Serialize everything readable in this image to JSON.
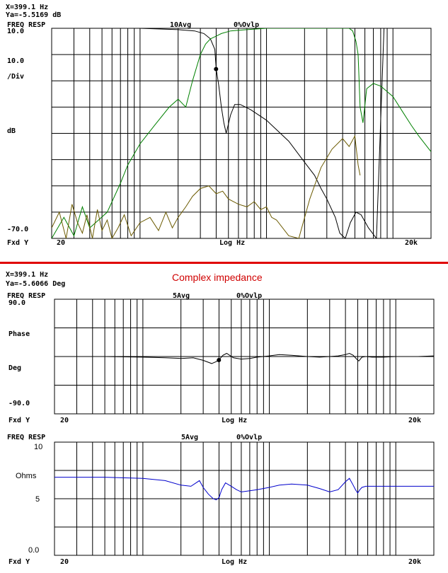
{
  "title": "Complex impedance",
  "divider_color": "#e00000",
  "charts": [
    {
      "readout_x": "X=399.1 Hz",
      "readout_y": "Ya=-5.5169 dB",
      "header_left": "FREQ RESP",
      "header_avg": "10Avg",
      "header_ovlp": "0%Ovlp",
      "y_top_label": "10.0",
      "y_scale_label": "10.0",
      "y_div_label": "/Div",
      "y_unit_label": "dB",
      "y_bottom_label": "-70.0",
      "x_mode_label": "Fxd Y",
      "x_left_label": "20",
      "x_center_label": "Log Hz",
      "x_right_label": "20k"
    },
    {
      "readout_x": "X=399.1 Hz",
      "readout_y": "Ya=-5.6066 Deg",
      "header_left": "FREQ RESP",
      "header_avg": "5Avg",
      "header_ovlp": "0%Ovlp",
      "y_top_label": "90.0",
      "y_mid_label": "Phase",
      "y_unit_label": "Deg",
      "y_bottom_label": "-90.0",
      "x_mode_label": "Fxd Y",
      "x_left_label": "20",
      "x_center_label": "Log Hz",
      "x_right_label": "20k"
    },
    {
      "header_left": "FREQ RESP",
      "header_avg": "5Avg",
      "header_ovlp": "0%Ovlp",
      "y_top_label": "10",
      "y_unit_label": "Ohms",
      "y_mid_label": "5",
      "y_bottom_label": "0.0",
      "x_mode_label": "Fxd Y",
      "x_left_label": "20",
      "x_center_label": "Log Hz",
      "x_right_label": "20k"
    }
  ],
  "chart_data": [
    {
      "type": "line",
      "x_scale": "log",
      "xlim": [
        20,
        20000
      ],
      "ylim": [
        -70,
        10
      ],
      "xlabel": "Log Hz",
      "ylabel": "dB",
      "grid": true,
      "series": [
        {
          "color": "#000000",
          "x": [
            20,
            50,
            100,
            200,
            270,
            320,
            360,
            390,
            400,
            420,
            440,
            460,
            480,
            520,
            560,
            620,
            750,
            1000,
            1500,
            2000,
            2400,
            2700,
            3000,
            3500,
            3800,
            4200,
            4600,
            5100,
            5600,
            6400,
            7400,
            8500,
            10000,
            12000,
            15000,
            20000
          ],
          "y": [
            10,
            10,
            10,
            9.5,
            9,
            8,
            6,
            2,
            -5.5,
            -12,
            -20,
            -26,
            -30,
            -23,
            -19,
            -19,
            -21,
            -25,
            -33,
            -41,
            -46,
            -51,
            -55,
            -62,
            -68,
            -70,
            -64,
            -60,
            -61,
            -66,
            -70,
            10,
            10,
            10,
            10,
            10
          ]
        },
        {
          "color": "#008000",
          "x": [
            20,
            25,
            30,
            35,
            40,
            47,
            55,
            70,
            80,
            100,
            130,
            170,
            200,
            230,
            260,
            300,
            330,
            360,
            400,
            440,
            520,
            700,
            1000,
            1500,
            2000,
            2500,
            3000,
            4000,
            4500,
            4800,
            5100,
            5300,
            5500,
            5800,
            6200,
            7000,
            8000,
            10000,
            12000,
            14000,
            16000,
            20000
          ],
          "y": [
            -70,
            -62,
            -69,
            -58,
            -66,
            -63,
            -60,
            -49,
            -42,
            -34,
            -27,
            -20,
            -17,
            -20,
            -10,
            0,
            4,
            6,
            7,
            8,
            9,
            9.5,
            10,
            10,
            10,
            10,
            10,
            10,
            10,
            9,
            5,
            0,
            -20,
            -26,
            -13,
            -11,
            -12,
            -16,
            -22,
            -27,
            -31,
            -37
          ]
        },
        {
          "color": "#6b5a00",
          "x": [
            20,
            23,
            26,
            29,
            32,
            35,
            38,
            42,
            46,
            50,
            55,
            60,
            67,
            75,
            85,
            100,
            120,
            140,
            160,
            180,
            200,
            230,
            260,
            300,
            350,
            400,
            450,
            500,
            600,
            700,
            800,
            900,
            1000,
            1100,
            1200,
            1500,
            1800,
            2200,
            2700,
            3300,
            4000,
            4500,
            5000,
            5300,
            5500
          ],
          "y": [
            -66,
            -60,
            -70,
            -57,
            -64,
            -68,
            -61,
            -70,
            -59,
            -67,
            -63,
            -70,
            -66,
            -61,
            -69,
            -64,
            -62,
            -67,
            -60,
            -66,
            -62,
            -58,
            -54,
            -51,
            -50,
            -53,
            -52,
            -55,
            -57,
            -58,
            -56,
            -59,
            -58,
            -62,
            -63,
            -69,
            -70,
            -55,
            -43,
            -36,
            -32,
            -35,
            -31,
            -42,
            -46
          ]
        }
      ],
      "cursor": {
        "x": 399.1,
        "y": -5.5169
      }
    },
    {
      "type": "line",
      "x_scale": "log",
      "xlim": [
        20,
        20000
      ],
      "ylim": [
        -90,
        90
      ],
      "xlabel": "Log Hz",
      "ylabel": "Phase Deg",
      "grid": true,
      "series": [
        {
          "color": "#000000",
          "x": [
            20,
            50,
            100,
            150,
            200,
            250,
            300,
            350,
            380,
            400,
            430,
            460,
            520,
            600,
            700,
            800,
            1000,
            1200,
            1500,
            2000,
            2500,
            3000,
            3500,
            4000,
            4300,
            4600,
            4900,
            5100,
            5400,
            5800,
            6500,
            8000,
            10000,
            15000,
            20000
          ],
          "y": [
            0,
            0,
            -1,
            -2,
            -3,
            -2,
            -6,
            -11,
            -8,
            -5,
            2,
            5,
            -2,
            -4,
            -3,
            -1,
            1,
            3,
            2,
            0,
            -1,
            0,
            1,
            3,
            5,
            2,
            -4,
            -7,
            -1,
            0,
            -1,
            -1,
            0,
            0,
            1
          ]
        }
      ],
      "cursor": {
        "x": 399.1,
        "y": -5.6066
      }
    },
    {
      "type": "line",
      "x_scale": "log",
      "xlim": [
        20,
        20000
      ],
      "ylim": [
        0,
        10
      ],
      "xlabel": "Log Hz",
      "ylabel": "Ohms",
      "grid": true,
      "series": [
        {
          "color": "#0000cc",
          "x": [
            20,
            50,
            100,
            150,
            200,
            240,
            280,
            300,
            330,
            360,
            380,
            400,
            420,
            450,
            500,
            550,
            600,
            700,
            800,
            1000,
            1200,
            1500,
            2000,
            2500,
            3000,
            3500,
            4000,
            4300,
            4600,
            4800,
            5000,
            5200,
            5400,
            5800,
            6500,
            8000,
            10000,
            15000,
            20000
          ],
          "y": [
            6.9,
            6.9,
            6.8,
            6.6,
            6.2,
            6.1,
            6.6,
            6.0,
            5.4,
            5.0,
            4.9,
            5.1,
            5.8,
            6.4,
            6.1,
            5.8,
            5.6,
            5.7,
            5.8,
            6.0,
            6.2,
            6.3,
            6.2,
            5.9,
            5.6,
            5.8,
            6.5,
            6.8,
            6.2,
            5.8,
            5.5,
            5.8,
            6.0,
            6.1,
            6.1,
            6.1,
            6.1,
            6.1,
            6.1
          ]
        }
      ]
    }
  ]
}
